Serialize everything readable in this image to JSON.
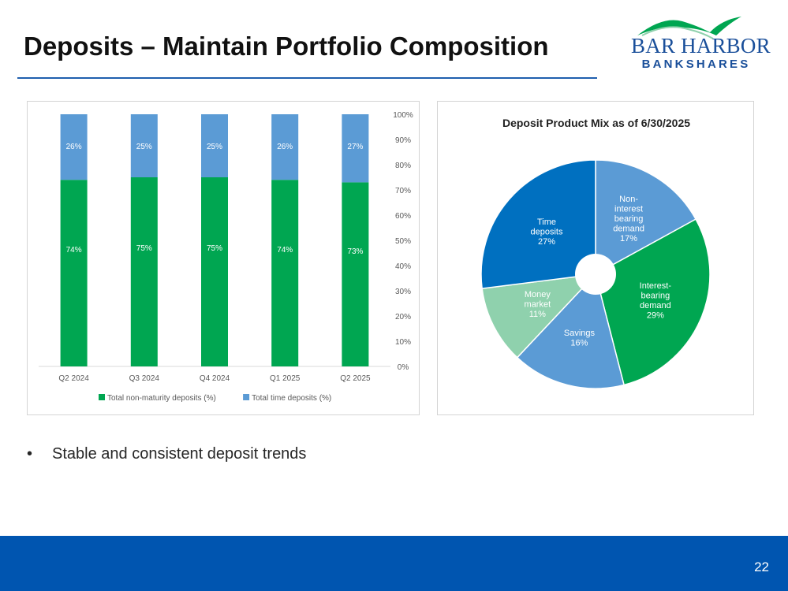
{
  "slide": {
    "title": "Deposits – Maintain Portfolio Composition",
    "page_number": "22",
    "bullets": [
      "Stable and consistent deposit trends"
    ]
  },
  "logo": {
    "line1": "BAR HARBOR",
    "line2": "BANKSHARES"
  },
  "colors": {
    "title_rule": "#1f5fae",
    "footer": "#0055b0",
    "green": "#00a651",
    "light_blue": "#5b9bd5",
    "dark_blue": "#0070c0",
    "mint": "#8fd1ad"
  },
  "chart_data": [
    {
      "type": "bar",
      "stacked": true,
      "categories": [
        "Q2 2024",
        "Q3 2024",
        "Q4 2024",
        "Q1 2025",
        "Q2 2025"
      ],
      "series": [
        {
          "name": "Total non-maturity deposits (%)",
          "color": "#00a651",
          "values": [
            74,
            75,
            75,
            74,
            73
          ]
        },
        {
          "name": "Total time deposits (%)",
          "color": "#5b9bd5",
          "values": [
            26,
            25,
            25,
            26,
            27
          ]
        }
      ],
      "ylim": [
        0,
        100
      ],
      "yticks": [
        "0%",
        "10%",
        "20%",
        "30%",
        "40%",
        "50%",
        "60%",
        "70%",
        "80%",
        "90%",
        "100%"
      ],
      "y_axis_side": "right",
      "legend": "bottom",
      "title": ""
    },
    {
      "type": "pie",
      "donut": true,
      "title": "Deposit Product Mix as of 6/30/2025",
      "slices": [
        {
          "label": [
            "Non-",
            "interest",
            "bearing",
            "demand",
            "17%"
          ],
          "value": 17,
          "color": "#5b9bd5"
        },
        {
          "label": [
            "Interest-",
            "bearing",
            "demand",
            "29%"
          ],
          "value": 29,
          "color": "#00a651"
        },
        {
          "label": [
            "Savings",
            "16%"
          ],
          "value": 16,
          "color": "#5b9bd5"
        },
        {
          "label": [
            "Money",
            "market",
            "11%"
          ],
          "value": 11,
          "color": "#8fd1ad"
        },
        {
          "label": [
            "Time",
            "deposits",
            "27%"
          ],
          "value": 27,
          "color": "#0070c0"
        }
      ]
    }
  ]
}
